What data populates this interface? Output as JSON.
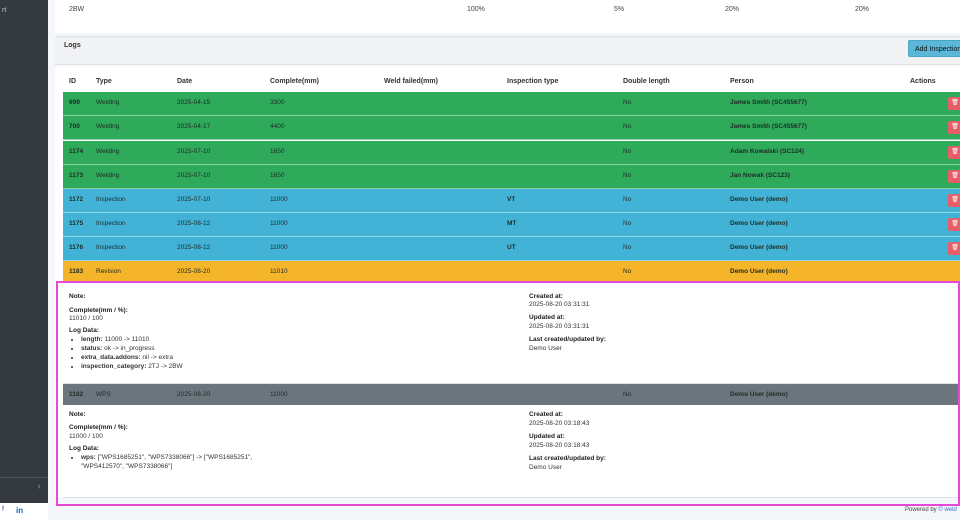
{
  "sidebar": {
    "fragment": "rt",
    "collapse_icon": "‹"
  },
  "top_row": {
    "name": "2BW",
    "p1": "100%",
    "p2": "5%",
    "p3": "20%",
    "p4": "20%"
  },
  "logs": {
    "title": "Logs",
    "add_button": "Add Inspection"
  },
  "columns": [
    "ID",
    "Type",
    "Date",
    "Complete(mm)",
    "Weld failed(mm)",
    "Inspection type",
    "Double length",
    "Person",
    "Actions"
  ],
  "rows": [
    {
      "id": "699",
      "type": "Welding",
      "date": "2025-04-15",
      "complete": "3300",
      "weld_failed": "",
      "insp_type": "",
      "double": "No",
      "person": "James Smith (SC455677)"
    },
    {
      "id": "700",
      "type": "Welding",
      "date": "2025-04-17",
      "complete": "4400",
      "weld_failed": "",
      "insp_type": "",
      "double": "No",
      "person": "James Smith (SC455677)"
    },
    {
      "id": "1174",
      "type": "Welding",
      "date": "2025-07-10",
      "complete": "1650",
      "weld_failed": "",
      "insp_type": "",
      "double": "No",
      "person": "Adam Kowalski (SC124)"
    },
    {
      "id": "1173",
      "type": "Welding",
      "date": "2025-07-10",
      "complete": "1650",
      "weld_failed": "",
      "insp_type": "",
      "double": "No",
      "person": "Jan Nowak (SC123)"
    },
    {
      "id": "1172",
      "type": "Inspection",
      "date": "2025-07-10",
      "complete": "11000",
      "weld_failed": "",
      "insp_type": "VT",
      "double": "No",
      "person": "Demo User (demo)"
    },
    {
      "id": "1175",
      "type": "Inspection",
      "date": "2025-08-12",
      "complete": "11000",
      "weld_failed": "",
      "insp_type": "MT",
      "double": "No",
      "person": "Demo User (demo)"
    },
    {
      "id": "1176",
      "type": "Inspection",
      "date": "2025-08-12",
      "complete": "11000",
      "weld_failed": "",
      "insp_type": "UT",
      "double": "No",
      "person": "Demo User (demo)"
    },
    {
      "id": "1183",
      "type": "Revision",
      "date": "2025-08-20",
      "complete": "11010",
      "weld_failed": "",
      "insp_type": "",
      "double": "No",
      "person": "Demo User (demo)"
    },
    {
      "id": "1182",
      "type": "WPS",
      "date": "2025-08-20",
      "complete": "11000",
      "weld_failed": "",
      "insp_type": "",
      "double": "No",
      "person": "Demo User (demo)"
    }
  ],
  "details": [
    {
      "note_label": "Note:",
      "complete_label": "Complete(mm / %):",
      "complete_value": "11010 / 100",
      "log_label": "Log Data:",
      "log_items": [
        {
          "key": "length:",
          "val": " 11000 -> 11010"
        },
        {
          "key": "status:",
          "val": " ok -> in_progress"
        },
        {
          "key": "extra_data.addons:",
          "val": " nil -> extra"
        },
        {
          "key": "inspection_category:",
          "val": " 2TJ -> 2BW"
        }
      ],
      "created_label": "Created at:",
      "created_value": "2025-08-20 03:31:31",
      "updated_label": "Updated at:",
      "updated_value": "2025-08-20 03:31:31",
      "last_label": "Last created/updated by:",
      "last_value": "Demo User"
    },
    {
      "note_label": "Note:",
      "complete_label": "Complete(mm / %):",
      "complete_value": "11000 / 100",
      "log_label": "Log Data:",
      "log_items": [
        {
          "key": "wps:",
          "val": " [\"WPS1685251\", \"WPS7338066\"] -> [\"WPS1685251\", \"WPS412570\", \"WPS7338066\"]"
        }
      ],
      "created_label": "Created at:",
      "created_value": "2025-08-20 03:18:43",
      "updated_label": "Updated at:",
      "updated_value": "2025-08-20 03:18:43",
      "last_label": "Last created/updated by:",
      "last_value": "Demo User"
    }
  ],
  "footer": {
    "text": "Powered by ",
    "brand": "© weld"
  },
  "social": {
    "facebook": "f",
    "linkedin": "in"
  },
  "colors": {
    "welding": "#2eaa5a",
    "inspection": "#42b3d6",
    "revision": "#f5b52a",
    "wps": "#6c757d",
    "delete": "#e85d6a",
    "highlight": "#e848d8"
  }
}
